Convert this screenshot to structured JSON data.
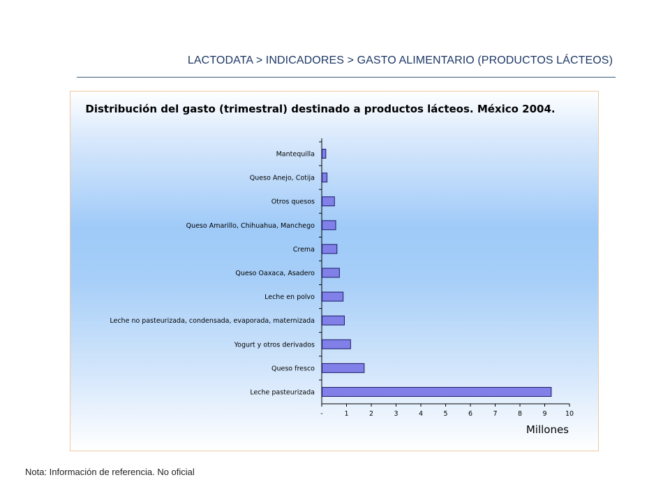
{
  "header": {
    "breadcrumb": "LACTODATA > INDICADORES > GASTO ALIMENTARIO (PRODUCTOS LÁCTEOS)"
  },
  "note": "Nota: Información de referencia. No oficial",
  "colors": {
    "bar_fill": "#8080e8",
    "bar_stroke": "#1a1a66",
    "header_text": "#1c3764",
    "panel_border": "#f0c8a0"
  },
  "chart_data": {
    "type": "bar",
    "orientation": "horizontal",
    "title": "Distribución del gasto (trimestral) destinado a productos lácteos. México 2004.",
    "xlabel": "Millones",
    "ylabel": "",
    "xlim": [
      0,
      10
    ],
    "x_ticks": [
      "-",
      "1",
      "2",
      "3",
      "4",
      "5",
      "6",
      "7",
      "8",
      "9",
      "10"
    ],
    "grid": false,
    "legend": "none",
    "categories": [
      "Mantequilla",
      "Queso Anejo, Cotija",
      "Otros quesos",
      "Queso Amarillo, Chihuahua, Manchego",
      "Crema",
      "Queso Oaxaca, Asadero",
      "Leche en polvo",
      "Leche no pasteurizada, condensada, evaporada, maternizada",
      "Yogurt y otros derivados",
      "Queso fresco",
      "Leche pasteurizada"
    ],
    "values": [
      0.15,
      0.2,
      0.5,
      0.55,
      0.6,
      0.7,
      0.85,
      0.9,
      1.15,
      1.7,
      9.25
    ]
  }
}
